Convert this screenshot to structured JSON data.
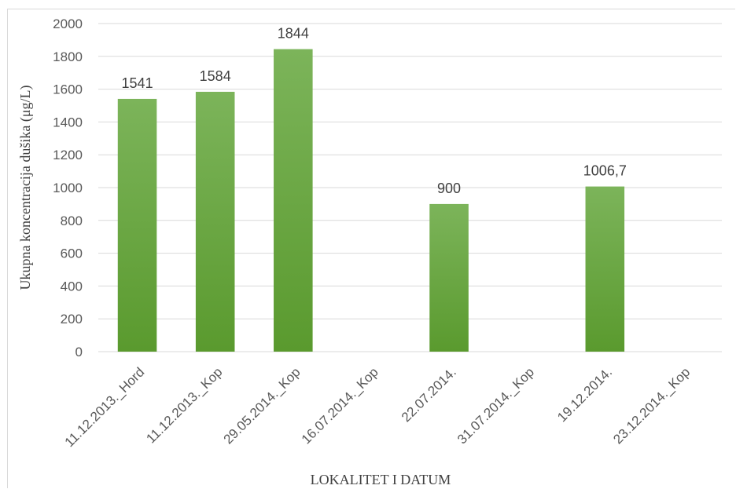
{
  "chart_data": {
    "type": "bar",
    "categories": [
      "11.12.2013._Hord",
      "11.12.2013._Kop",
      "29.05.2014._Kop",
      "16.07.2014._Kop",
      "22.07.2014.",
      "31.07.2014._Kop",
      "19.12.2014.",
      "23.12.2014._Kop"
    ],
    "values": [
      1541,
      1584,
      1844,
      null,
      900,
      null,
      1006.7,
      null
    ],
    "data_labels": [
      "1541",
      "1584",
      "1844",
      "",
      "900",
      "",
      "1006,7",
      ""
    ],
    "xlabel": "LOKALITET I DATUM",
    "ylabel": "Ukupna koncentracija dušika (μg/L)",
    "ylim": [
      0,
      2000
    ],
    "yticks": [
      0,
      200,
      400,
      600,
      800,
      1000,
      1200,
      1400,
      1600,
      1800,
      2000
    ],
    "grid": true,
    "colors": {
      "bar_top": "#7cb45a",
      "bar_bottom": "#5a9a2e",
      "grid": "#d9d9d9",
      "text": "#595959"
    }
  }
}
